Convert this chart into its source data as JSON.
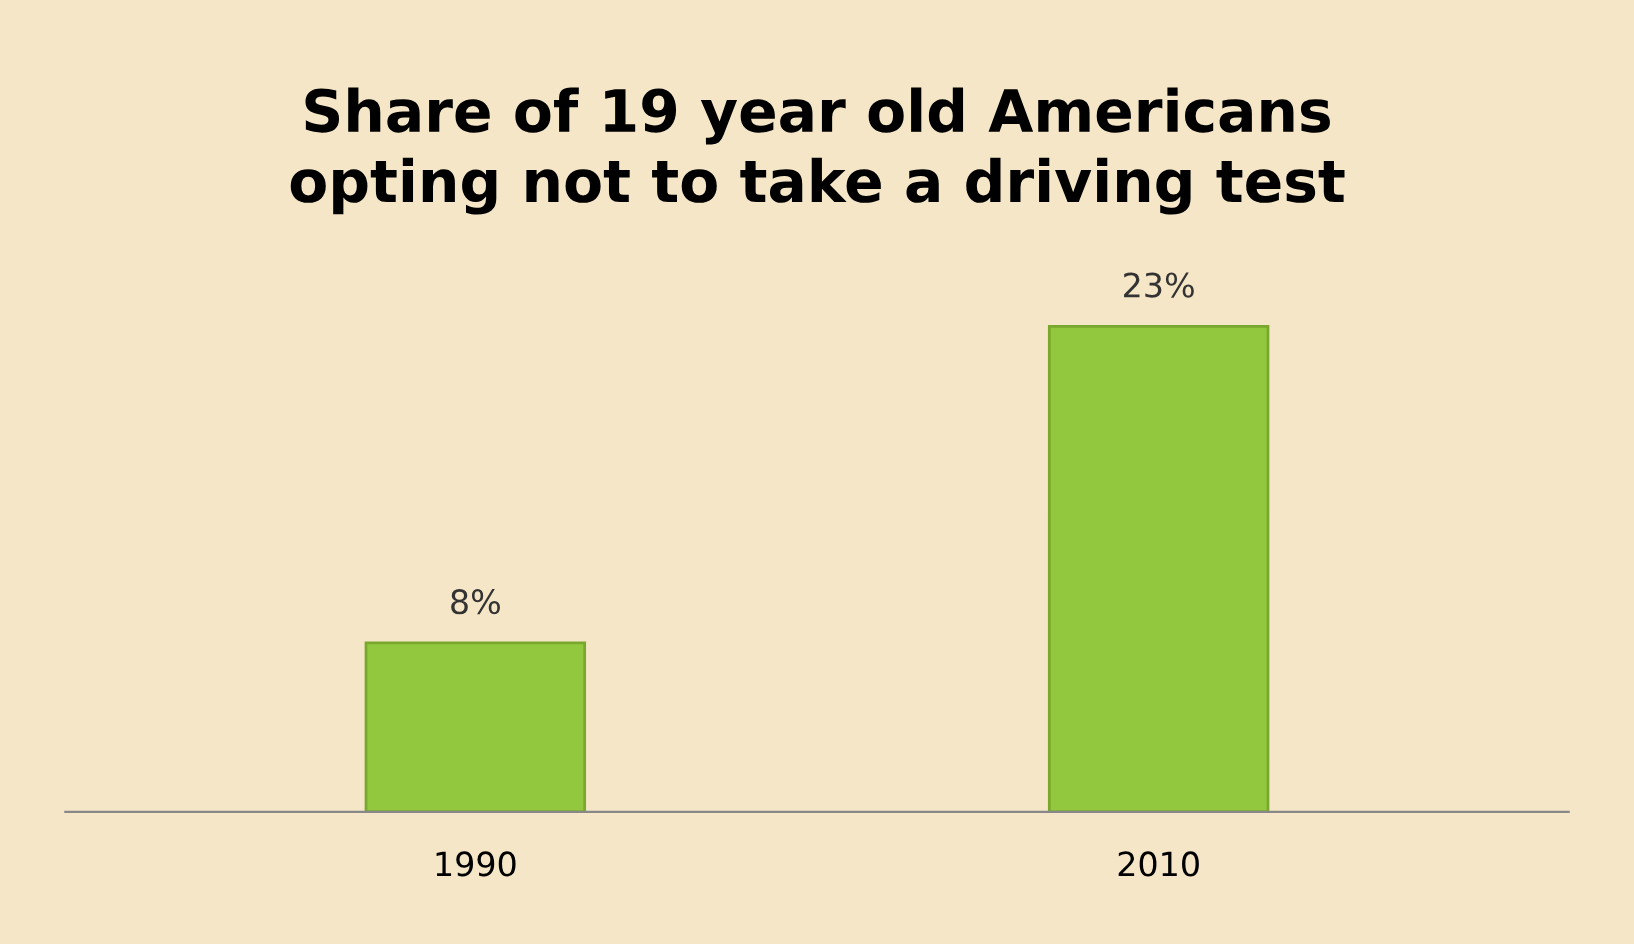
{
  "chart_data": {
    "type": "bar",
    "title": "Share of 19 year old Americans\nopting not to take a driving test",
    "categories": [
      "1990",
      "2010"
    ],
    "values": [
      8,
      23
    ],
    "value_labels": [
      "8%",
      "23%"
    ],
    "color": "#92c83e",
    "grid": false,
    "legend": false
  }
}
